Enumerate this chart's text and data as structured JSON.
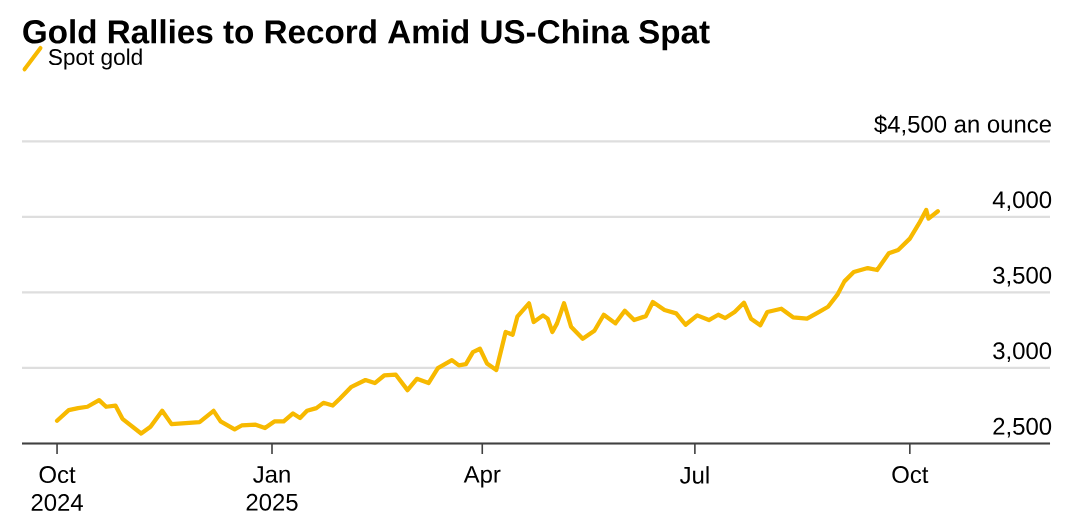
{
  "chart_data": {
    "type": "line",
    "title": "Gold Rallies to Record Amid US-China Spat",
    "legend": "top left",
    "grid": "y",
    "marker": "none",
    "line_style": "solid",
    "x": [
      "2024-10-01",
      "2024-10-06",
      "2024-10-10",
      "2024-10-14",
      "2024-10-19",
      "2024-10-22",
      "2024-10-26",
      "2024-10-29",
      "2024-11-06",
      "2024-11-10",
      "2024-11-15",
      "2024-11-19",
      "2024-12-01",
      "2024-12-07",
      "2024-12-10",
      "2024-12-16",
      "2024-12-19",
      "2024-12-25",
      "2024-12-29",
      "2025-01-02",
      "2025-01-06",
      "2025-01-10",
      "2025-01-13",
      "2025-01-16",
      "2025-01-20",
      "2025-01-23",
      "2025-01-27",
      "2025-01-30",
      "2025-02-04",
      "2025-02-10",
      "2025-02-14",
      "2025-02-18",
      "2025-02-23",
      "2025-02-28",
      "2025-03-04",
      "2025-03-09",
      "2025-03-13",
      "2025-03-19",
      "2025-03-22",
      "2025-03-25",
      "2025-03-28",
      "2025-03-31",
      "2025-04-03",
      "2025-04-07",
      "2025-04-11",
      "2025-04-14",
      "2025-04-16",
      "2025-04-21",
      "2025-04-23",
      "2025-04-27",
      "2025-04-29",
      "2025-05-01",
      "2025-05-03",
      "2025-05-06",
      "2025-05-09",
      "2025-05-14",
      "2025-05-19",
      "2025-05-23",
      "2025-05-28",
      "2025-06-01",
      "2025-06-05",
      "2025-06-10",
      "2025-06-13",
      "2025-06-18",
      "2025-06-23",
      "2025-06-27",
      "2025-07-02",
      "2025-07-07",
      "2025-07-11",
      "2025-07-14",
      "2025-07-18",
      "2025-07-22",
      "2025-07-25",
      "2025-07-29",
      "2025-08-01",
      "2025-08-07",
      "2025-08-12",
      "2025-08-18",
      "2025-08-23",
      "2025-08-27",
      "2025-08-31",
      "2025-09-03",
      "2025-09-07",
      "2025-09-13",
      "2025-09-17",
      "2025-09-22",
      "2025-09-26",
      "2025-10-01",
      "2025-10-05",
      "2025-10-08",
      "2025-10-09",
      "2025-10-13"
    ],
    "series": [
      {
        "name": "Spot gold",
        "color": "#f7b900",
        "values": [
          2650,
          2721,
          2734,
          2743,
          2787,
          2743,
          2751,
          2663,
          2566,
          2610,
          2716,
          2628,
          2641,
          2716,
          2646,
          2593,
          2619,
          2624,
          2602,
          2646,
          2646,
          2699,
          2668,
          2716,
          2734,
          2769,
          2751,
          2796,
          2875,
          2920,
          2900,
          2950,
          2955,
          2853,
          2928,
          2900,
          2999,
          3052,
          3017,
          3025,
          3105,
          3127,
          3030,
          2986,
          3238,
          3220,
          3339,
          3428,
          3304,
          3348,
          3326,
          3238,
          3295,
          3428,
          3273,
          3193,
          3246,
          3352,
          3295,
          3379,
          3317,
          3343,
          3436,
          3383,
          3361,
          3286,
          3348,
          3317,
          3352,
          3330,
          3370,
          3432,
          3326,
          3282,
          3370,
          3392,
          3335,
          3326,
          3370,
          3405,
          3485,
          3573,
          3635,
          3661,
          3648,
          3759,
          3781,
          3856,
          3958,
          4046,
          3988,
          4037
        ]
      }
    ],
    "xlim": [
      "2024-09-16",
      "2025-11-30"
    ],
    "xticks": [
      {
        "value": "2024-10-01",
        "label": "Oct 2024"
      },
      {
        "value": "2025-01-01",
        "label": "Jan 2025"
      },
      {
        "value": "2025-04-01",
        "label": "Apr"
      },
      {
        "value": "2025-07-01",
        "label": "Jul"
      },
      {
        "value": "2025-10-01",
        "label": "Oct"
      }
    ],
    "ylim": [
      2500,
      4500
    ],
    "yticks": [
      {
        "value": 2500,
        "label": "2,500"
      },
      {
        "value": 3000,
        "label": "3,000"
      },
      {
        "value": 3500,
        "label": "3,500"
      },
      {
        "value": 4000,
        "label": "4,000"
      },
      {
        "value": 4500,
        "label": "$4,500 an ounce"
      }
    ]
  }
}
